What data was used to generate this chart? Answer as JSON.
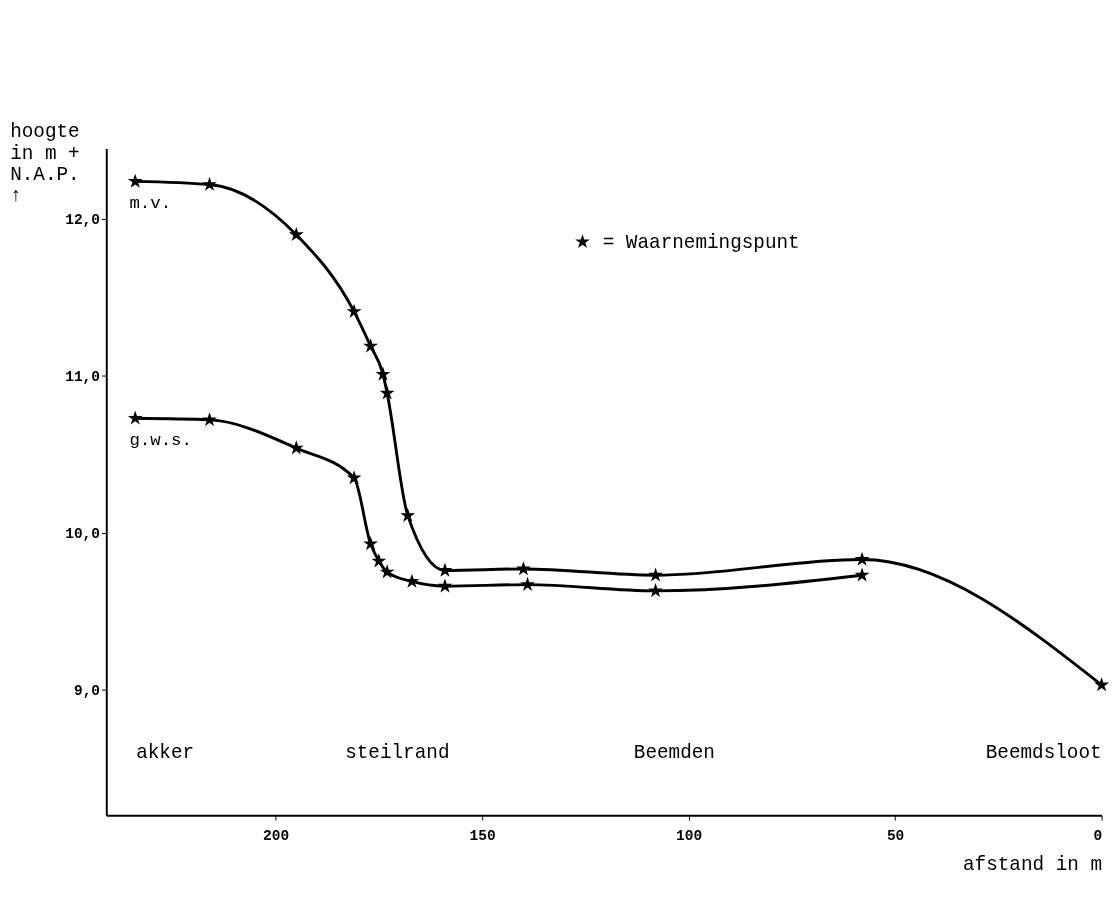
{
  "chart_data": {
    "type": "line",
    "ylabel": "hoogte\nin m +\nN.A.P.\n↑",
    "xlabel": "afstand in m",
    "xlim": [
      241,
      0
    ],
    "xticks": [
      200,
      150,
      100,
      50,
      0
    ],
    "ylim": [
      8.2,
      12.45
    ],
    "yticks": [
      {
        "value": 9,
        "label": "9,0"
      },
      {
        "value": 10,
        "label": "10,0"
      },
      {
        "value": 11,
        "label": "11,0"
      },
      {
        "value": 12,
        "label": "12,0"
      }
    ],
    "marker": "star",
    "grid": false,
    "series": [
      {
        "color": "#000000",
        "x": [
          234,
          216,
          195,
          181,
          177,
          174,
          173,
          168,
          159,
          140,
          108,
          58,
          0
        ],
        "values": [
          12.24,
          12.22,
          11.9,
          11.41,
          11.19,
          11.01,
          10.89,
          10.11,
          9.76,
          9.77,
          9.73,
          9.83,
          9.03
        ]
      },
      {
        "color": "#000000",
        "x": [
          234,
          216,
          195,
          181,
          177,
          175,
          173,
          167,
          159,
          139,
          108,
          58
        ],
        "values": [
          10.73,
          10.72,
          10.54,
          10.35,
          9.93,
          9.82,
          9.75,
          9.69,
          9.66,
          9.67,
          9.63,
          9.73
        ]
      }
    ],
    "annotations": [
      {
        "text": "m.v.",
        "x": 234,
        "y": 12.24
      },
      {
        "text": "g.w.s.",
        "x": 234,
        "y": 10.73
      },
      "★ = Waarnemingspunt",
      "akker",
      "steilrand",
      "Beemden",
      "Beemdsloot"
    ]
  }
}
